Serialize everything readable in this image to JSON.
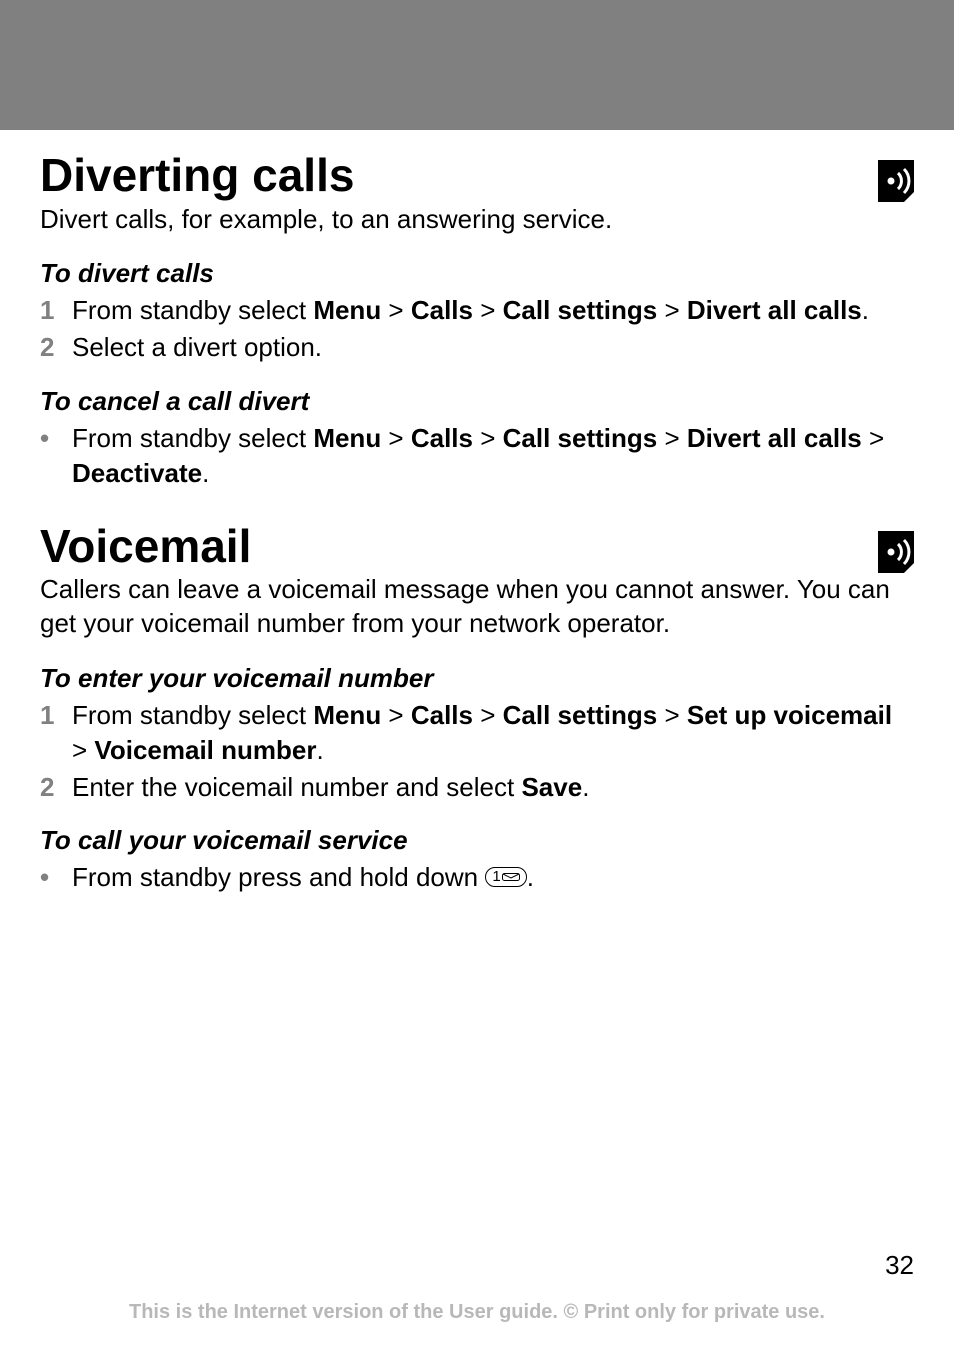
{
  "page": {
    "number": "32",
    "footer": "This is the Internet version of the User guide. © Print only for private use."
  },
  "sections": [
    {
      "title": "Diverting calls",
      "intro": "Divert calls, for example, to an answering service.",
      "blocks": [
        {
          "subhead": "To divert calls",
          "items": [
            {
              "marker": "1",
              "runs": [
                {
                  "t": "From standby select ",
                  "b": false
                },
                {
                  "t": "Menu",
                  "b": true
                },
                {
                  "t": " > ",
                  "b": false
                },
                {
                  "t": "Calls",
                  "b": true
                },
                {
                  "t": " > ",
                  "b": false
                },
                {
                  "t": "Call settings",
                  "b": true
                },
                {
                  "t": " > ",
                  "b": false
                },
                {
                  "t": "Divert all calls",
                  "b": true
                },
                {
                  "t": ".",
                  "b": false
                }
              ]
            },
            {
              "marker": "2",
              "runs": [
                {
                  "t": "Select a divert option.",
                  "b": false
                }
              ]
            }
          ]
        },
        {
          "subhead": "To cancel a call divert",
          "items": [
            {
              "marker": "•",
              "runs": [
                {
                  "t": "From standby select ",
                  "b": false
                },
                {
                  "t": "Menu",
                  "b": true
                },
                {
                  "t": " > ",
                  "b": false
                },
                {
                  "t": "Calls",
                  "b": true
                },
                {
                  "t": " > ",
                  "b": false
                },
                {
                  "t": "Call settings",
                  "b": true
                },
                {
                  "t": " > ",
                  "b": false
                },
                {
                  "t": "Divert all calls",
                  "b": true
                },
                {
                  "t": " > ",
                  "b": false
                },
                {
                  "t": "Deactivate",
                  "b": true
                },
                {
                  "t": ".",
                  "b": false
                }
              ]
            }
          ]
        }
      ]
    },
    {
      "title": "Voicemail",
      "intro": "Callers can leave a voicemail message when you cannot answer. You can get your voicemail number from your network operator.",
      "blocks": [
        {
          "subhead": "To enter your voicemail number",
          "items": [
            {
              "marker": "1",
              "runs": [
                {
                  "t": "From standby select ",
                  "b": false
                },
                {
                  "t": "Menu",
                  "b": true
                },
                {
                  "t": " > ",
                  "b": false
                },
                {
                  "t": "Calls",
                  "b": true
                },
                {
                  "t": " > ",
                  "b": false
                },
                {
                  "t": "Call settings",
                  "b": true
                },
                {
                  "t": " > ",
                  "b": false
                },
                {
                  "t": "Set up voicemail",
                  "b": true
                },
                {
                  "t": " > ",
                  "b": false
                },
                {
                  "t": "Voicemail number",
                  "b": true
                },
                {
                  "t": ".",
                  "b": false
                }
              ]
            },
            {
              "marker": "2",
              "runs": [
                {
                  "t": "Enter the voicemail number and select ",
                  "b": false
                },
                {
                  "t": "Save",
                  "b": true
                },
                {
                  "t": ".",
                  "b": false
                }
              ]
            }
          ]
        },
        {
          "subhead": "To call your voicemail service",
          "items": [
            {
              "marker": "•",
              "runs": [
                {
                  "t": "From standby press and hold down ",
                  "b": false
                },
                {
                  "key": "1-voicemail"
                },
                {
                  "t": ".",
                  "b": false
                }
              ]
            }
          ]
        }
      ]
    }
  ],
  "styling": {
    "page_background": "#808080",
    "content_background": "#ffffff",
    "text_color": "#000000",
    "marker_color": "#808080",
    "footer_color": "#b8b8b8",
    "h1_fontsize": 46,
    "body_fontsize": 26,
    "footer_fontsize": 20,
    "icon_bg": "#000000",
    "icon_fg": "#ffffff"
  }
}
